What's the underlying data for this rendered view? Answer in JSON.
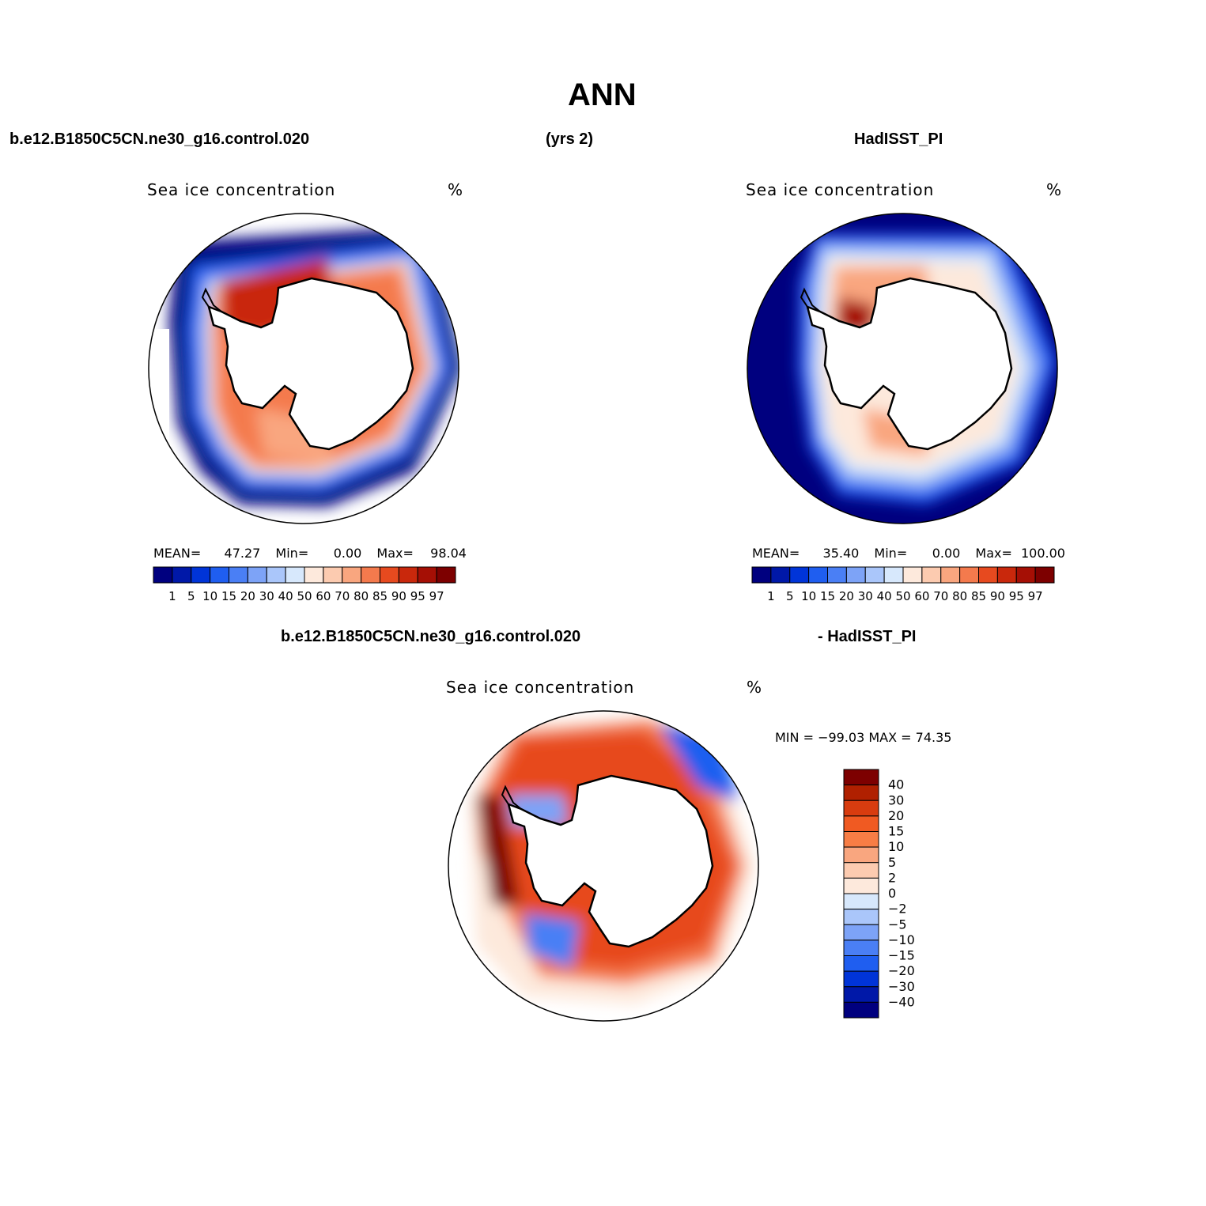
{
  "title": "ANN",
  "top_left_case": "b.e12.B1850C5CN.ne30_g16.control.020",
  "years": "(yrs 2)",
  "top_right_obs": "HadISST_PI",
  "bottom_case": "b.e12.B1850C5CN.ne30_g16.control.020",
  "bottom_obs": "- HadISST_PI",
  "panels": {
    "model": {
      "variable": "Sea ice concentration",
      "units": "%",
      "stats": {
        "mean_label": "MEAN=",
        "mean": "47.27",
        "min_label": "Min=",
        "min": "0.00",
        "max_label": "Max=",
        "max": "98.04"
      }
    },
    "obs": {
      "variable": "Sea ice concentration",
      "units": "%",
      "stats": {
        "mean_label": "MEAN=",
        "mean": "35.40",
        "min_label": "Min=",
        "min": "0.00",
        "max_label": "Max=",
        "max": "100.00"
      }
    },
    "diff": {
      "variable": "Sea ice concentration",
      "units": "%",
      "minmax": "MIN = −99.03 MAX =   74.35"
    }
  },
  "chart_data": [
    {
      "type": "heatmap",
      "projection": "south polar stereographic",
      "panel": "model",
      "colorbar_levels": [
        "1",
        "5",
        "10",
        "15",
        "20",
        "30",
        "40",
        "50",
        "60",
        "70",
        "80",
        "85",
        "90",
        "95",
        "97"
      ],
      "colors": [
        "#00007f",
        "#0018a8",
        "#0034d8",
        "#1f5ef0",
        "#4a7ff5",
        "#7da3f7",
        "#aac6fa",
        "#d7e8fc",
        "#fde9dc",
        "#fccbb0",
        "#f9a67f",
        "#f47a4d",
        "#e74a1f",
        "#c9280c",
        "#a50f05",
        "#7d0000"
      ]
    },
    {
      "type": "heatmap",
      "projection": "south polar stereographic",
      "panel": "obs",
      "colorbar_levels": [
        "1",
        "5",
        "10",
        "15",
        "20",
        "30",
        "40",
        "50",
        "60",
        "70",
        "80",
        "85",
        "90",
        "95",
        "97"
      ],
      "colors": [
        "#00007f",
        "#0018a8",
        "#0034d8",
        "#1f5ef0",
        "#4a7ff5",
        "#7da3f7",
        "#aac6fa",
        "#d7e8fc",
        "#fde9dc",
        "#fccbb0",
        "#f9a67f",
        "#f47a4d",
        "#e74a1f",
        "#c9280c",
        "#a50f05",
        "#7d0000"
      ]
    },
    {
      "type": "heatmap",
      "projection": "south polar stereographic",
      "panel": "diff",
      "colorbar_levels": [
        "40",
        "30",
        "20",
        "15",
        "10",
        "5",
        "2",
        "0",
        "−2",
        "−5",
        "−10",
        "−15",
        "−20",
        "−30",
        "−40"
      ],
      "colors": [
        "#7d0000",
        "#b02000",
        "#d83c0f",
        "#f05a22",
        "#f77d45",
        "#f9a67f",
        "#fccbb0",
        "#fde9dc",
        "#d7e8fc",
        "#aac6fa",
        "#7da3f7",
        "#4a7ff5",
        "#1f5ef0",
        "#0034d8",
        "#0018a8",
        "#00007f"
      ]
    }
  ]
}
